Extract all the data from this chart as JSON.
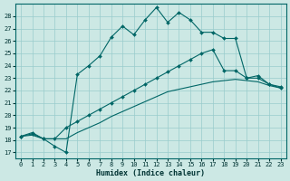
{
  "xlabel": "Humidex (Indice chaleur)",
  "bg_color": "#cce8e4",
  "grid_color": "#99cccc",
  "line_color": "#006666",
  "xlim": [
    -0.5,
    23.5
  ],
  "ylim": [
    16.5,
    29.0
  ],
  "yticks": [
    17,
    18,
    19,
    20,
    21,
    22,
    23,
    24,
    25,
    26,
    27,
    28
  ],
  "xticks": [
    0,
    1,
    2,
    3,
    4,
    5,
    6,
    7,
    8,
    9,
    10,
    11,
    12,
    13,
    14,
    15,
    16,
    17,
    18,
    19,
    20,
    21,
    22,
    23
  ],
  "line1_x": [
    0,
    1,
    2,
    3,
    4,
    5,
    6,
    7,
    8,
    9,
    10,
    11,
    12,
    13,
    14,
    15,
    16,
    17,
    18,
    19,
    20,
    21,
    22,
    23
  ],
  "line1_y": [
    18.3,
    18.6,
    18.1,
    17.5,
    17.0,
    23.3,
    24.0,
    24.8,
    26.3,
    27.2,
    26.5,
    27.7,
    28.7,
    27.5,
    28.3,
    27.7,
    26.7,
    26.7,
    26.2,
    26.2,
    23.0,
    23.2,
    22.5,
    22.3
  ],
  "line2_x": [
    0,
    1,
    2,
    3,
    4,
    5,
    6,
    7,
    8,
    9,
    10,
    11,
    12,
    13,
    14,
    15,
    16,
    17,
    18,
    19,
    20,
    21,
    22,
    23
  ],
  "line2_y": [
    18.3,
    18.5,
    18.1,
    18.1,
    19.0,
    19.5,
    20.0,
    20.5,
    21.0,
    21.5,
    22.0,
    22.5,
    23.0,
    23.5,
    24.0,
    24.5,
    25.0,
    25.3,
    23.6,
    23.6,
    23.0,
    23.0,
    22.5,
    22.2
  ],
  "line3_x": [
    0,
    1,
    2,
    3,
    4,
    5,
    6,
    7,
    8,
    9,
    10,
    11,
    12,
    13,
    14,
    15,
    16,
    17,
    18,
    19,
    20,
    21,
    22,
    23
  ],
  "line3_y": [
    18.3,
    18.4,
    18.1,
    18.1,
    18.1,
    18.6,
    19.0,
    19.4,
    19.9,
    20.3,
    20.7,
    21.1,
    21.5,
    21.9,
    22.1,
    22.3,
    22.5,
    22.7,
    22.8,
    22.9,
    22.8,
    22.7,
    22.4,
    22.2
  ]
}
